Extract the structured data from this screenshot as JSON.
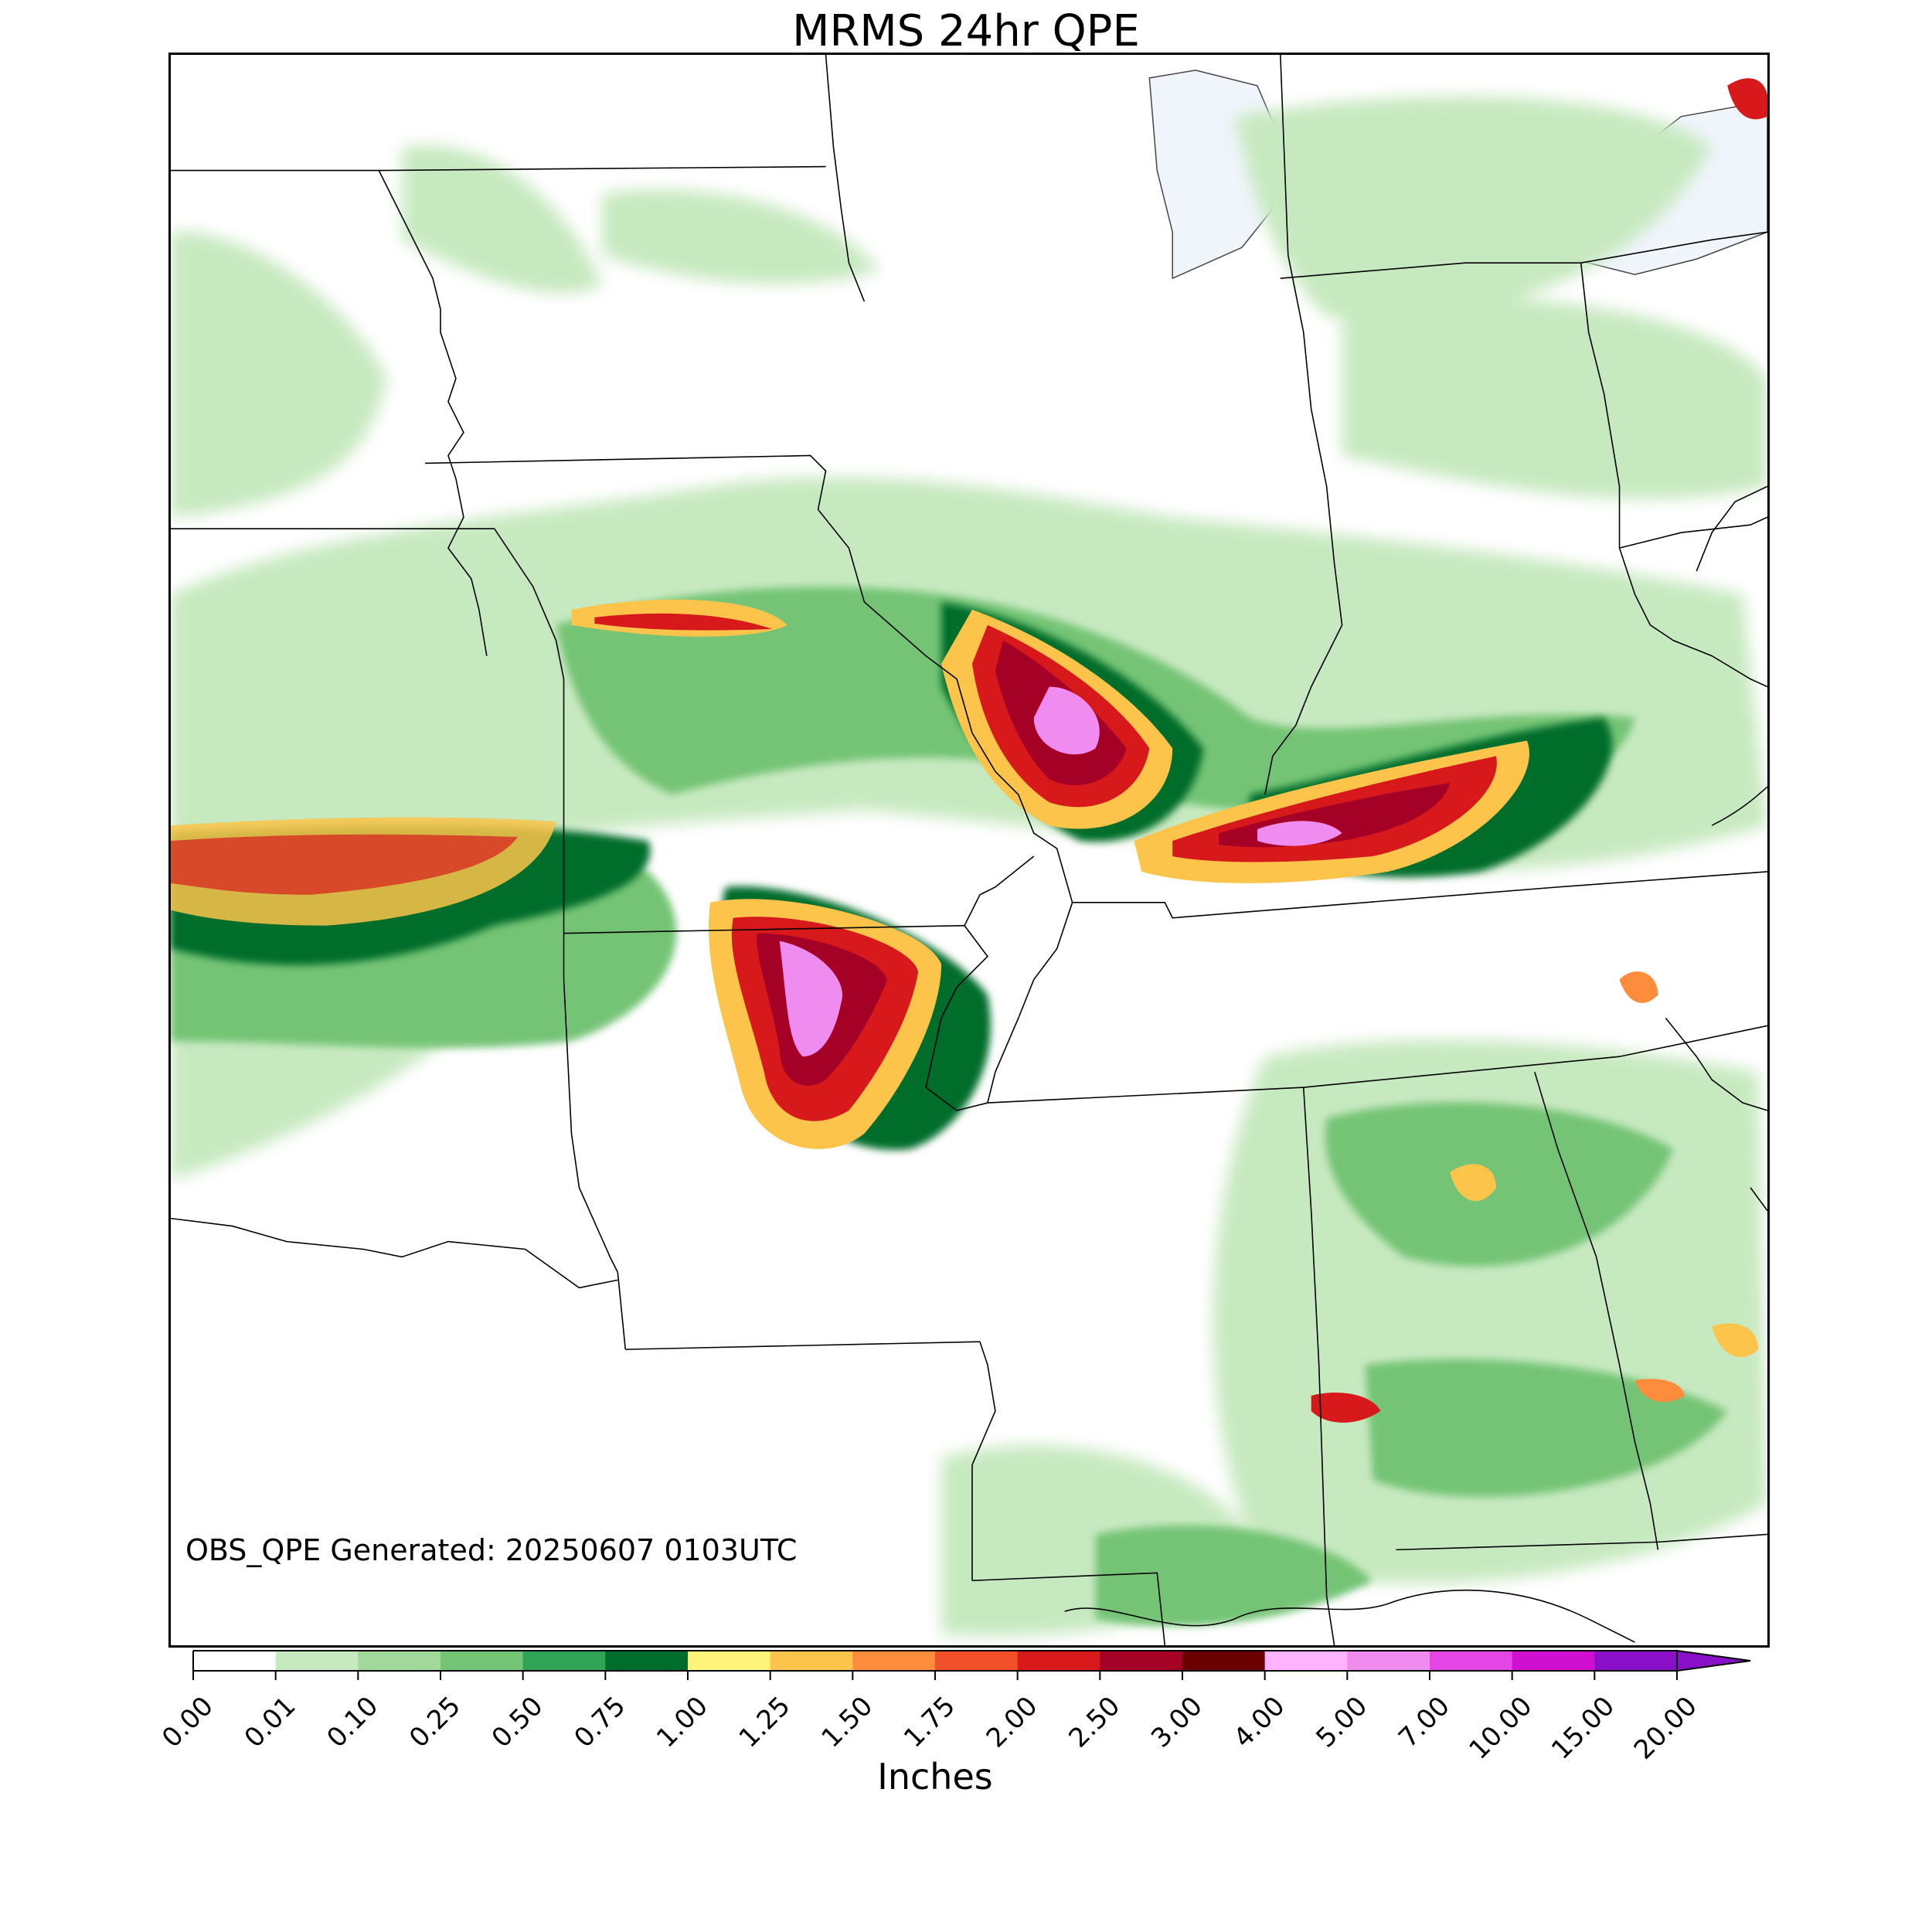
{
  "title": "MRMS 24hr QPE",
  "generated_text": "OBS_QPE Generated: 20250607 0103UTC",
  "colorbar": {
    "units_label": "Inches",
    "ticks": [
      "0.00",
      "0.01",
      "0.10",
      "0.25",
      "0.50",
      "0.75",
      "1.00",
      "1.25",
      "1.50",
      "1.75",
      "2.00",
      "2.50",
      "3.00",
      "4.00",
      "5.00",
      "7.00",
      "10.00",
      "15.00",
      "20.00"
    ],
    "colors": [
      "#ffffff",
      "#c7e9c0",
      "#a1d99b",
      "#74c476",
      "#31a354",
      "#006d2c",
      "#fff47a",
      "#fcc44a",
      "#fd8d3c",
      "#f2502a",
      "#d7191c",
      "#a50026",
      "#6b0000",
      "#ffb3ff",
      "#f08bf0",
      "#e645e6",
      "#d10fd1",
      "#8a0fc8"
    ],
    "extend": "max"
  },
  "map": {
    "water_color": "#f0f5fc",
    "border_color": "#000000"
  }
}
